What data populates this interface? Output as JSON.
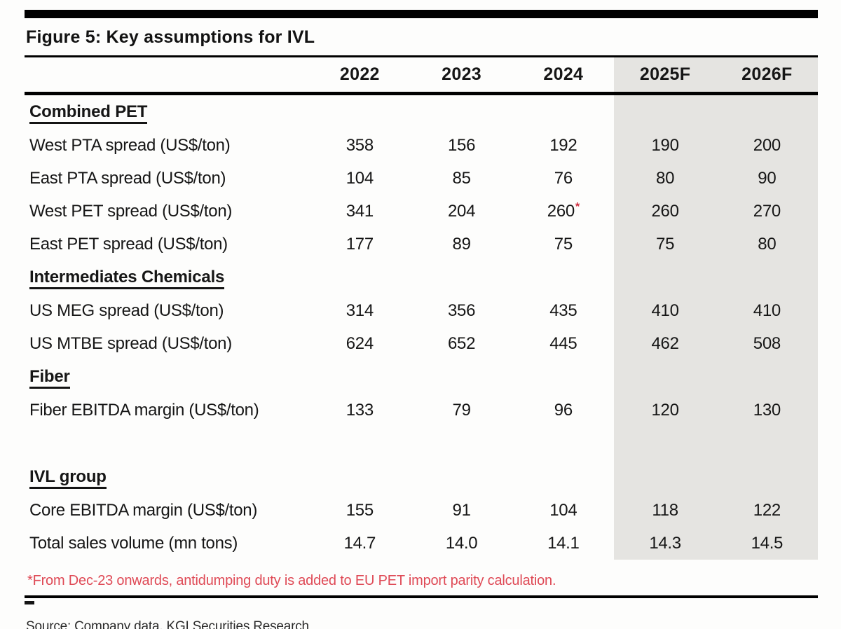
{
  "figure": {
    "title": "Figure 5: Key assumptions for IVL",
    "footnote": "*From Dec-23 onwards, antidumping duty is added to EU PET import parity calculation.",
    "source": "Source: Company data, KGI Securities Research"
  },
  "colors": {
    "forecast_band": "#e5e4e1",
    "footnote_red": "#df4a56",
    "asterisk_red": "#cf2b3d",
    "rule_black": "#000000"
  },
  "chart_data": {
    "type": "table",
    "title": "Figure 5: Key assumptions for IVL",
    "columns": [
      "2022",
      "2023",
      "2024",
      "2025F",
      "2026F"
    ],
    "forecast_columns": [
      "2025F",
      "2026F"
    ],
    "rows": [
      {
        "type": "section",
        "label": "Combined PET"
      },
      {
        "type": "data",
        "label": "West PTA spread (US$/ton)",
        "values": [
          "358",
          "156",
          "192",
          "190",
          "200"
        ]
      },
      {
        "type": "data",
        "label": "East PTA spread (US$/ton)",
        "values": [
          "104",
          "85",
          "76",
          "80",
          "90"
        ]
      },
      {
        "type": "data",
        "label": "West PET spread (US$/ton)",
        "values": [
          "341",
          "204",
          "260",
          "260",
          "270"
        ],
        "asterisk_col": 2
      },
      {
        "type": "data",
        "label": "East PET spread (US$/ton)",
        "values": [
          "177",
          "89",
          "75",
          "75",
          "80"
        ]
      },
      {
        "type": "section",
        "label": "Intermediates Chemicals"
      },
      {
        "type": "data",
        "label": "US MEG spread (US$/ton)",
        "values": [
          "314",
          "356",
          "435",
          "410",
          "410"
        ]
      },
      {
        "type": "data",
        "label": "US MTBE spread (US$/ton)",
        "values": [
          "624",
          "652",
          "445",
          "462",
          "508"
        ]
      },
      {
        "type": "section",
        "label": "Fiber"
      },
      {
        "type": "data",
        "label": "Fiber EBITDA margin (US$/ton)",
        "values": [
          "133",
          "79",
          "96",
          "120",
          "130"
        ]
      },
      {
        "type": "blank",
        "label": ""
      },
      {
        "type": "section",
        "label": "IVL group"
      },
      {
        "type": "data",
        "label": "Core EBITDA margin (US$/ton)",
        "values": [
          "155",
          "91",
          "104",
          "118",
          "122"
        ]
      },
      {
        "type": "data",
        "label": "Total sales volume (mn tons)",
        "values": [
          "14.7",
          "14.0",
          "14.1",
          "14.3",
          "14.5"
        ]
      }
    ]
  }
}
